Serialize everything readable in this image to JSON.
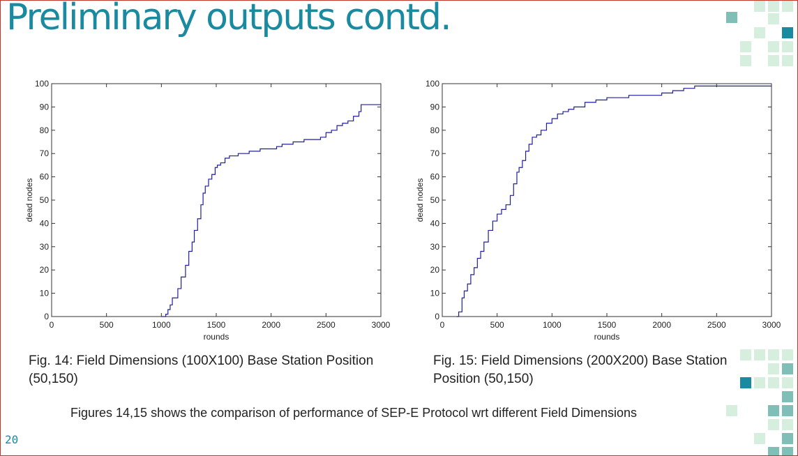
{
  "slide": {
    "title": "Preliminary outputs contd.",
    "page_number": "20",
    "summary": "Figures 14,15 shows the comparison of performance of SEP-E Protocol wrt different Field Dimensions",
    "colors": {
      "title": "#1a8aa0",
      "border": "#c0392b",
      "line": "#1f1f9a",
      "deco_light": "#d6eedd",
      "deco_mid": "#7fbfb8",
      "deco_dark": "#1a8aa0"
    }
  },
  "figures": [
    {
      "caption": "Fig. 14: Field Dimensions (100X100) Base Station Position (50,150)"
    },
    {
      "caption": "Fig. 15: Field Dimensions (200X200) Base Station Position (50,150)"
    }
  ],
  "chart_data": [
    {
      "type": "line",
      "xlabel": "rounds",
      "ylabel": "dead nodes",
      "xlim": [
        0,
        3000
      ],
      "ylim": [
        0,
        100
      ],
      "xticks": [
        0,
        500,
        1000,
        1500,
        2000,
        2500,
        3000
      ],
      "yticks": [
        0,
        10,
        20,
        30,
        40,
        50,
        60,
        70,
        80,
        90,
        100
      ],
      "grid": false,
      "series": [
        {
          "x": [
            1000,
            1040,
            1060,
            1080,
            1100,
            1150,
            1180,
            1220,
            1250,
            1280,
            1300,
            1330,
            1360,
            1380,
            1400,
            1430,
            1460,
            1490,
            1510,
            1540,
            1580,
            1620,
            1700,
            1800,
            1900,
            2000,
            2050,
            2100,
            2200,
            2300,
            2400,
            2450,
            2500,
            2550,
            2600,
            2650,
            2700,
            2750,
            2800,
            2820,
            3000
          ],
          "y": [
            0,
            1,
            3,
            5,
            8,
            12,
            17,
            22,
            28,
            32,
            37,
            42,
            48,
            53,
            56,
            59,
            61,
            64,
            65,
            66,
            68,
            69,
            70,
            71,
            72,
            72,
            73,
            74,
            75,
            76,
            76,
            77,
            79,
            80,
            82,
            83,
            84,
            86,
            88,
            91,
            91
          ]
        }
      ]
    },
    {
      "type": "line",
      "xlabel": "rounds",
      "ylabel": "dead nodes",
      "xlim": [
        0,
        3000
      ],
      "ylim": [
        0,
        100
      ],
      "xticks": [
        0,
        500,
        1000,
        1500,
        2000,
        2500,
        3000
      ],
      "yticks": [
        0,
        10,
        20,
        30,
        40,
        50,
        60,
        70,
        80,
        90,
        100
      ],
      "grid": false,
      "series": [
        {
          "x": [
            130,
            150,
            180,
            200,
            230,
            260,
            290,
            320,
            350,
            380,
            420,
            460,
            500,
            540,
            580,
            620,
            650,
            680,
            700,
            730,
            760,
            790,
            820,
            860,
            900,
            950,
            1000,
            1050,
            1100,
            1150,
            1200,
            1300,
            1400,
            1500,
            1600,
            1700,
            1800,
            1900,
            2000,
            2100,
            2200,
            2300,
            2500,
            3000
          ],
          "y": [
            0,
            2,
            8,
            11,
            14,
            18,
            21,
            25,
            28,
            32,
            37,
            41,
            44,
            46,
            48,
            52,
            57,
            62,
            64,
            67,
            71,
            74,
            77,
            78,
            80,
            83,
            85,
            87,
            88,
            89,
            90,
            92,
            93,
            94,
            94,
            95,
            95,
            95,
            96,
            97,
            98,
            99,
            99,
            99
          ]
        }
      ]
    }
  ]
}
